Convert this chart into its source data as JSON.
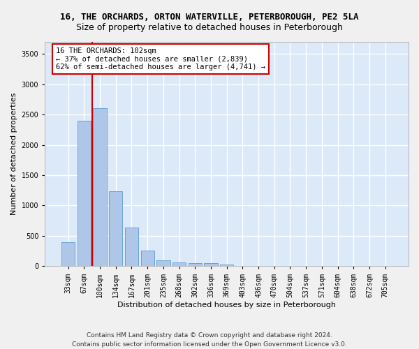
{
  "title1": "16, THE ORCHARDS, ORTON WATERVILLE, PETERBOROUGH, PE2 5LA",
  "title2": "Size of property relative to detached houses in Peterborough",
  "xlabel": "Distribution of detached houses by size in Peterborough",
  "ylabel": "Number of detached properties",
  "categories": [
    "33sqm",
    "67sqm",
    "100sqm",
    "134sqm",
    "167sqm",
    "201sqm",
    "235sqm",
    "268sqm",
    "302sqm",
    "336sqm",
    "369sqm",
    "403sqm",
    "436sqm",
    "470sqm",
    "504sqm",
    "537sqm",
    "571sqm",
    "604sqm",
    "638sqm",
    "672sqm",
    "705sqm"
  ],
  "values": [
    390,
    2400,
    2610,
    1240,
    640,
    260,
    95,
    60,
    55,
    45,
    30,
    0,
    0,
    0,
    0,
    0,
    0,
    0,
    0,
    0,
    0
  ],
  "bar_color": "#aec6e8",
  "bar_edge_color": "#5b9bd5",
  "annotation_text": "16 THE ORCHARDS: 102sqm\n← 37% of detached houses are smaller (2,839)\n62% of semi-detached houses are larger (4,741) →",
  "annotation_box_color": "#ffffff",
  "annotation_box_edge": "#cc0000",
  "vline_color": "#cc0000",
  "vline_x_index": 2,
  "ylim": [
    0,
    3700
  ],
  "yticks": [
    0,
    500,
    1000,
    1500,
    2000,
    2500,
    3000,
    3500
  ],
  "footer1": "Contains HM Land Registry data © Crown copyright and database right 2024.",
  "footer2": "Contains public sector information licensed under the Open Government Licence v3.0.",
  "bg_color": "#dce9f8",
  "grid_color": "#ffffff",
  "fig_bg_color": "#f0f0f0",
  "title1_fontsize": 9,
  "title2_fontsize": 9,
  "axis_label_fontsize": 8,
  "tick_fontsize": 7,
  "annotation_fontsize": 7.5,
  "footer_fontsize": 6.5
}
